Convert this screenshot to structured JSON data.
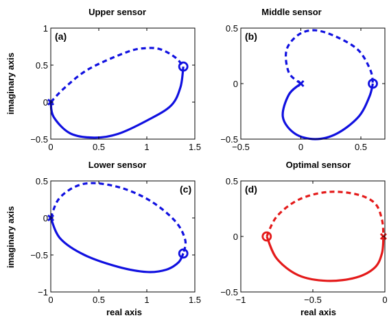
{
  "colors": {
    "blue": "#1010e0",
    "red": "#e41a1a",
    "axis": "#000000"
  },
  "chart_data": [
    {
      "type": "line",
      "panel_label": "(a)",
      "title": "Upper sensor",
      "xlabel": "",
      "ylabel": "imaginary axis",
      "xlim": [
        0,
        1.5
      ],
      "ylim": [
        -0.5,
        1
      ],
      "xticks": [
        0,
        0.5,
        1,
        1.5
      ],
      "xtick_labels": [
        "0",
        "0.5",
        "1",
        "1.5"
      ],
      "yticks": [
        -0.5,
        0,
        0.5,
        1
      ],
      "ytick_labels": [
        "−0.5",
        "0",
        "0.5",
        "1"
      ],
      "color": "#1010e0",
      "dashed_curve": [
        [
          0,
          0
        ],
        [
          0.15,
          0.2
        ],
        [
          0.4,
          0.45
        ],
        [
          0.8,
          0.68
        ],
        [
          1.0,
          0.73
        ],
        [
          1.15,
          0.71
        ],
        [
          1.3,
          0.6
        ],
        [
          1.38,
          0.48
        ]
      ],
      "solid_curve": [
        [
          0,
          0
        ],
        [
          0.03,
          -0.2
        ],
        [
          0.2,
          -0.42
        ],
        [
          0.45,
          -0.48
        ],
        [
          0.7,
          -0.43
        ],
        [
          1.0,
          -0.25
        ],
        [
          1.25,
          -0.05
        ],
        [
          1.35,
          0.2
        ],
        [
          1.38,
          0.48
        ]
      ],
      "cross_marker": [
        0,
        0
      ],
      "circle_marker": [
        1.38,
        0.48
      ]
    },
    {
      "type": "line",
      "panel_label": "(b)",
      "title": "Middle sensor",
      "xlabel": "",
      "ylabel": "",
      "xlim": [
        -0.5,
        0.7
      ],
      "ylim": [
        -0.5,
        0.5
      ],
      "xticks": [
        -0.5,
        0,
        0.5
      ],
      "xtick_labels": [
        "−0.5",
        "0",
        "0.5"
      ],
      "yticks": [
        -0.5,
        0,
        0.5
      ],
      "ytick_labels": [
        "−0.5",
        "0",
        "0.5"
      ],
      "color": "#1010e0",
      "dashed_curve": [
        [
          0,
          0
        ],
        [
          -0.1,
          0.1
        ],
        [
          -0.12,
          0.3
        ],
        [
          -0.02,
          0.44
        ],
        [
          0.12,
          0.48
        ],
        [
          0.3,
          0.42
        ],
        [
          0.48,
          0.3
        ],
        [
          0.58,
          0.12
        ],
        [
          0.6,
          0
        ]
      ],
      "solid_curve": [
        [
          0,
          0
        ],
        [
          -0.1,
          -0.1
        ],
        [
          -0.15,
          -0.3
        ],
        [
          -0.05,
          -0.45
        ],
        [
          0.12,
          -0.5
        ],
        [
          0.3,
          -0.45
        ],
        [
          0.48,
          -0.3
        ],
        [
          0.57,
          -0.12
        ],
        [
          0.6,
          0
        ]
      ],
      "cross_marker": [
        0,
        0
      ],
      "circle_marker": [
        0.6,
        0
      ]
    },
    {
      "type": "line",
      "panel_label": "(c)",
      "title": "Lower sensor",
      "xlabel": "real axis",
      "ylabel": "imaginary axis",
      "xlim": [
        0,
        1.5
      ],
      "ylim": [
        -1,
        0.5
      ],
      "xticks": [
        0,
        0.5,
        1,
        1.5
      ],
      "xtick_labels": [
        "0",
        "0.5",
        "1",
        "1.5"
      ],
      "yticks": [
        -1,
        -0.5,
        0,
        0.5
      ],
      "ytick_labels": [
        "−1",
        "−0.5",
        "0",
        "0.5"
      ],
      "color": "#1010e0",
      "dashed_curve": [
        [
          0,
          0
        ],
        [
          0.08,
          0.25
        ],
        [
          0.25,
          0.42
        ],
        [
          0.45,
          0.47
        ],
        [
          0.75,
          0.4
        ],
        [
          1.05,
          0.22
        ],
        [
          1.3,
          -0.05
        ],
        [
          1.4,
          -0.3
        ],
        [
          1.38,
          -0.48
        ]
      ],
      "solid_curve": [
        [
          0,
          0
        ],
        [
          0.1,
          -0.28
        ],
        [
          0.35,
          -0.5
        ],
        [
          0.7,
          -0.66
        ],
        [
          1.0,
          -0.73
        ],
        [
          1.2,
          -0.7
        ],
        [
          1.33,
          -0.6
        ],
        [
          1.38,
          -0.48
        ]
      ],
      "cross_marker": [
        0,
        0
      ],
      "circle_marker": [
        1.38,
        -0.48
      ]
    },
    {
      "type": "line",
      "panel_label": "(d)",
      "title": "Optimal sensor",
      "xlabel": "real axis",
      "ylabel": "",
      "xlim": [
        -1,
        0
      ],
      "ylim": [
        -0.5,
        0.5
      ],
      "xticks": [
        -1,
        -0.5,
        0
      ],
      "xtick_labels": [
        "−1",
        "−0.5",
        "0"
      ],
      "yticks": [
        -0.5,
        0,
        0.5
      ],
      "ytick_labels": [
        "−0.5",
        "0",
        "0.5"
      ],
      "color": "#e41a1a",
      "dashed_curve": [
        [
          -0.82,
          0
        ],
        [
          -0.75,
          0.18
        ],
        [
          -0.6,
          0.33
        ],
        [
          -0.4,
          0.4
        ],
        [
          -0.2,
          0.38
        ],
        [
          -0.07,
          0.3
        ],
        [
          -0.02,
          0.15
        ],
        [
          -0.01,
          0
        ]
      ],
      "solid_curve": [
        [
          -0.82,
          0
        ],
        [
          -0.75,
          -0.2
        ],
        [
          -0.6,
          -0.35
        ],
        [
          -0.4,
          -0.4
        ],
        [
          -0.2,
          -0.37
        ],
        [
          -0.07,
          -0.28
        ],
        [
          -0.02,
          -0.15
        ],
        [
          -0.01,
          0
        ]
      ],
      "cross_marker": [
        -0.01,
        0
      ],
      "circle_marker": [
        -0.82,
        0
      ]
    }
  ]
}
